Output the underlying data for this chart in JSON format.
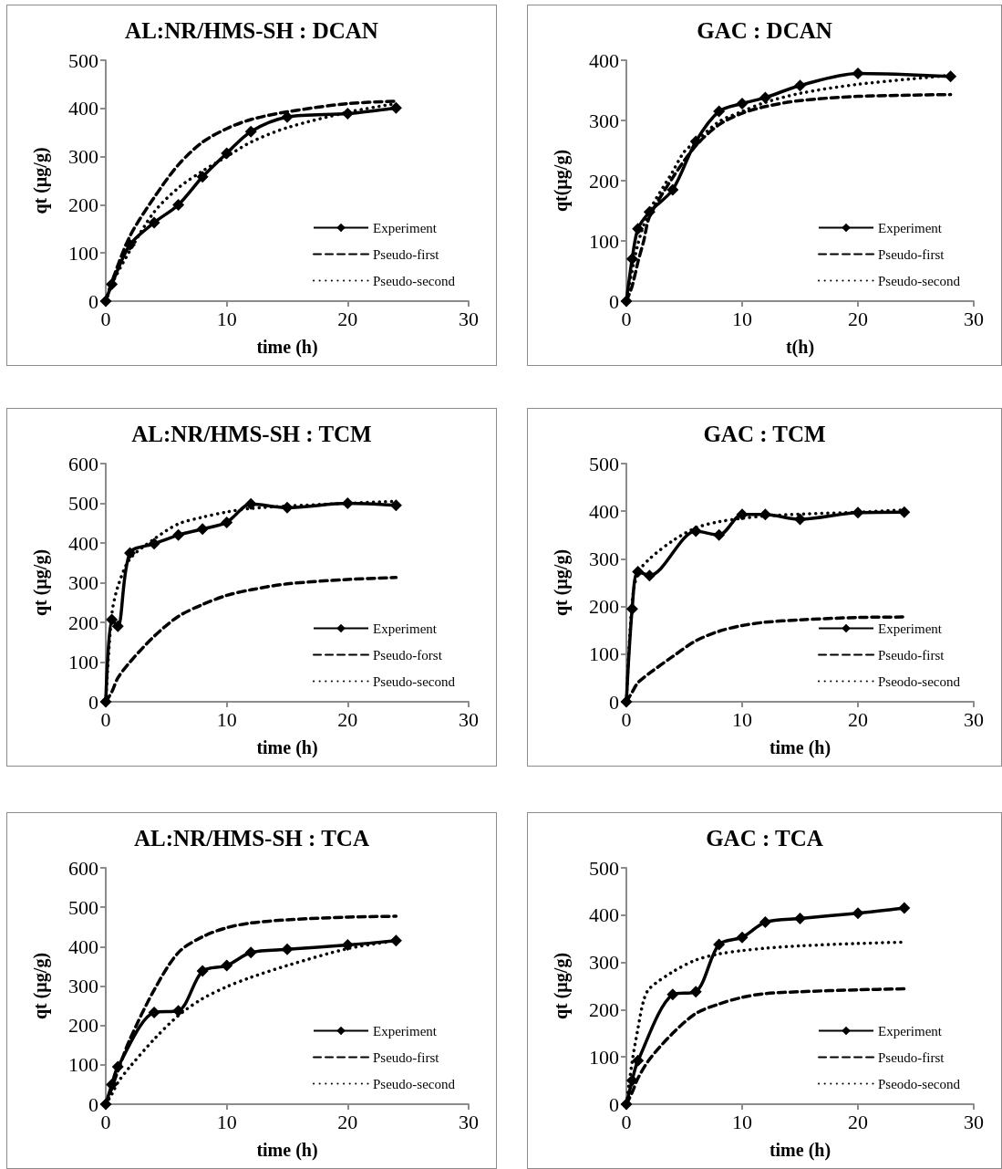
{
  "chart_data": [
    {
      "type": "line",
      "title": "AL:NR/HMS-SH : DCAN",
      "xlabel": "time (h)",
      "ylabel": "qt (µg/g)",
      "xlim": [
        0,
        30
      ],
      "xticks": [
        0,
        10,
        20,
        30
      ],
      "ylim": [
        0,
        500
      ],
      "yticks": [
        0,
        100,
        200,
        300,
        400,
        500
      ],
      "grid": false,
      "legend": "bottom right",
      "series": [
        {
          "name": "Experiment",
          "color": "#000000",
          "marker": "diamond",
          "line_style": "solid",
          "x": [
            0,
            0.5,
            2,
            4,
            6,
            8,
            10,
            12,
            15,
            20,
            24
          ],
          "values": [
            0,
            35,
            117,
            163,
            200,
            258,
            307,
            352,
            382,
            389,
            401
          ]
        },
        {
          "name": "Pseudo-first",
          "color": "#000000",
          "marker": "none",
          "line_style": "dashed",
          "x": [
            0,
            0.5,
            2,
            4,
            6,
            8,
            10,
            12,
            15,
            20,
            24
          ],
          "values": [
            0,
            40,
            135,
            215,
            283,
            330,
            358,
            377,
            393,
            410,
            415
          ]
        },
        {
          "name": "Pseudo-second",
          "color": "#000000",
          "marker": "none",
          "line_style": "dotted",
          "x": [
            0,
            0.5,
            2,
            4,
            6,
            8,
            10,
            12,
            15,
            20,
            24
          ],
          "values": [
            0,
            35,
            105,
            185,
            235,
            270,
            300,
            330,
            360,
            392,
            410
          ]
        }
      ]
    },
    {
      "type": "line",
      "title": "GAC : DCAN",
      "xlabel": "t(h)",
      "ylabel": "qt(µg/g)",
      "xlim": [
        0,
        30
      ],
      "xticks": [
        0,
        10,
        20,
        30
      ],
      "ylim": [
        0,
        400
      ],
      "yticks": [
        0,
        100,
        200,
        300,
        400
      ],
      "grid": false,
      "legend": "bottom right",
      "series": [
        {
          "name": "Experiment",
          "color": "#000000",
          "marker": "diamond",
          "line_style": "solid",
          "x": [
            0,
            0.5,
            1,
            2,
            4,
            6,
            8,
            10,
            12,
            15,
            20,
            28
          ],
          "values": [
            0,
            70,
            120,
            148,
            185,
            265,
            315,
            328,
            338,
            358,
            378,
            373
          ]
        },
        {
          "name": "Pseudo-first",
          "color": "#000000",
          "marker": "none",
          "line_style": "dashed",
          "x": [
            0,
            0.5,
            1,
            1.5,
            2,
            4,
            6,
            8,
            10,
            12,
            15,
            20,
            28
          ],
          "values": [
            0,
            25,
            65,
            100,
            140,
            205,
            258,
            293,
            312,
            323,
            333,
            340,
            343
          ]
        },
        {
          "name": "Pseudo-second",
          "color": "#000000",
          "marker": "none",
          "line_style": "dotted",
          "x": [
            0,
            1,
            2,
            4,
            5,
            6,
            8,
            10,
            12,
            15,
            20,
            28
          ],
          "values": [
            0,
            95,
            150,
            215,
            248,
            265,
            298,
            315,
            330,
            345,
            360,
            375
          ]
        }
      ]
    },
    {
      "type": "line",
      "title": "AL:NR/HMS-SH : TCM",
      "xlabel": "time (h)",
      "ylabel": "qt (µg/g)",
      "xlim": [
        0,
        30
      ],
      "xticks": [
        0,
        10,
        20,
        30
      ],
      "ylim": [
        0,
        600
      ],
      "yticks": [
        0,
        100,
        200,
        300,
        400,
        500,
        600
      ],
      "grid": false,
      "legend": "bottom right",
      "series": [
        {
          "name": "Experiment",
          "color": "#000000",
          "marker": "diamond",
          "line_style": "solid",
          "x": [
            0,
            0.5,
            1,
            2,
            4,
            6,
            8,
            10,
            12,
            15,
            20,
            24
          ],
          "values": [
            0,
            207,
            190,
            375,
            398,
            420,
            435,
            452,
            498,
            489,
            500,
            495
          ]
        },
        {
          "name": "Pseudo-forst",
          "color": "#000000",
          "marker": "none",
          "line_style": "dashed",
          "x": [
            0,
            0.5,
            1,
            2,
            4,
            6,
            8,
            10,
            12,
            15,
            20,
            24
          ],
          "values": [
            0,
            25,
            60,
            100,
            165,
            215,
            245,
            268,
            282,
            297,
            308,
            313
          ]
        },
        {
          "name": "Pseudo-second",
          "color": "#000000",
          "marker": "none",
          "line_style": "dotted",
          "x": [
            0,
            0.5,
            1,
            2,
            4,
            6,
            8,
            10,
            12,
            15,
            20,
            24
          ],
          "values": [
            0,
            220,
            290,
            360,
            410,
            448,
            465,
            478,
            487,
            493,
            500,
            505
          ]
        }
      ]
    },
    {
      "type": "line",
      "title": "GAC : TCM",
      "xlabel": "time (h)",
      "ylabel": "qt (µg/g)",
      "xlim": [
        0,
        30
      ],
      "xticks": [
        0,
        10,
        20,
        30
      ],
      "ylim": [
        0,
        500
      ],
      "yticks": [
        0,
        100,
        200,
        300,
        400,
        500
      ],
      "grid": false,
      "legend": "bottom right",
      "series": [
        {
          "name": "Experiment",
          "color": "#000000",
          "marker": "diamond",
          "line_style": "solid",
          "x": [
            0,
            0.5,
            1,
            2,
            6,
            8,
            10,
            12,
            15,
            20,
            24
          ],
          "values": [
            0,
            195,
            273,
            265,
            358,
            350,
            393,
            393,
            383,
            397,
            398
          ]
        },
        {
          "name": "Pseudo-first",
          "color": "#000000",
          "marker": "none",
          "line_style": "dashed",
          "x": [
            0,
            0.5,
            1,
            2,
            4,
            6,
            8,
            10,
            12,
            15,
            20,
            24
          ],
          "values": [
            0,
            20,
            40,
            60,
            95,
            128,
            148,
            160,
            167,
            172,
            177,
            178
          ]
        },
        {
          "name": "Pseodo-second",
          "color": "#000000",
          "marker": "none",
          "line_style": "dotted",
          "x": [
            0,
            0.5,
            1,
            2,
            4,
            6,
            8,
            10,
            12,
            15,
            20,
            24
          ],
          "values": [
            0,
            210,
            270,
            300,
            338,
            365,
            378,
            385,
            390,
            394,
            398,
            403
          ]
        }
      ]
    },
    {
      "type": "line",
      "title": "AL:NR/HMS-SH : TCA",
      "xlabel": "time (h)",
      "ylabel": "qt (µg/g)",
      "xlim": [
        0,
        30
      ],
      "xticks": [
        0,
        10,
        20,
        30
      ],
      "ylim": [
        0,
        600
      ],
      "yticks": [
        0,
        100,
        200,
        300,
        400,
        500,
        600
      ],
      "grid": false,
      "legend": "bottom right",
      "series": [
        {
          "name": "Experiment",
          "color": "#000000",
          "marker": "diamond",
          "line_style": "solid",
          "x": [
            0,
            0.5,
            1,
            4,
            6,
            8,
            10,
            12,
            15,
            20,
            24
          ],
          "values": [
            0,
            50,
            95,
            233,
            237,
            338,
            352,
            385,
            393,
            404,
            415
          ]
        },
        {
          "name": "Pseudo-first",
          "color": "#000000",
          "marker": "none",
          "line_style": "dashed",
          "x": [
            0,
            0.5,
            1,
            2,
            4,
            6,
            8,
            10,
            12,
            15,
            20,
            24
          ],
          "values": [
            0,
            40,
            85,
            165,
            290,
            385,
            425,
            448,
            460,
            468,
            475,
            477
          ]
        },
        {
          "name": "Pseudo-second",
          "color": "#000000",
          "marker": "none",
          "line_style": "dotted",
          "x": [
            0,
            0.5,
            1,
            2,
            4,
            6,
            8,
            10,
            12,
            15,
            20,
            24
          ],
          "values": [
            0,
            25,
            55,
            95,
            165,
            225,
            268,
            298,
            322,
            352,
            395,
            415
          ]
        }
      ]
    },
    {
      "type": "line",
      "title": "GAC : TCA",
      "xlabel": "time (h)",
      "ylabel": "qt (µg/g)",
      "xlim": [
        0,
        30
      ],
      "xticks": [
        0,
        10,
        20,
        30
      ],
      "ylim": [
        0,
        500
      ],
      "yticks": [
        0,
        100,
        200,
        300,
        400,
        500
      ],
      "grid": false,
      "legend": "bottom right",
      "series": [
        {
          "name": "Experiment",
          "color": "#000000",
          "marker": "diamond",
          "line_style": "solid",
          "x": [
            0,
            0.5,
            1,
            4,
            6,
            8,
            10,
            12,
            15,
            20,
            24
          ],
          "values": [
            0,
            50,
            92,
            232,
            238,
            338,
            353,
            385,
            393,
            404,
            415
          ]
        },
        {
          "name": "Pseudo-first",
          "color": "#000000",
          "marker": "none",
          "line_style": "dashed",
          "x": [
            0,
            0.5,
            1,
            2,
            4,
            6,
            8,
            10,
            12,
            15,
            20,
            24
          ],
          "values": [
            0,
            25,
            55,
            95,
            150,
            192,
            212,
            226,
            234,
            238,
            242,
            244
          ]
        },
        {
          "name": "Pseodo-second",
          "color": "#000000",
          "marker": "none",
          "line_style": "dotted",
          "x": [
            0,
            0.5,
            1,
            1.5,
            2,
            4,
            6,
            8,
            10,
            12,
            15,
            20,
            24
          ],
          "values": [
            0,
            90,
            160,
            220,
            245,
            280,
            305,
            318,
            325,
            330,
            335,
            340,
            343
          ]
        }
      ]
    }
  ]
}
